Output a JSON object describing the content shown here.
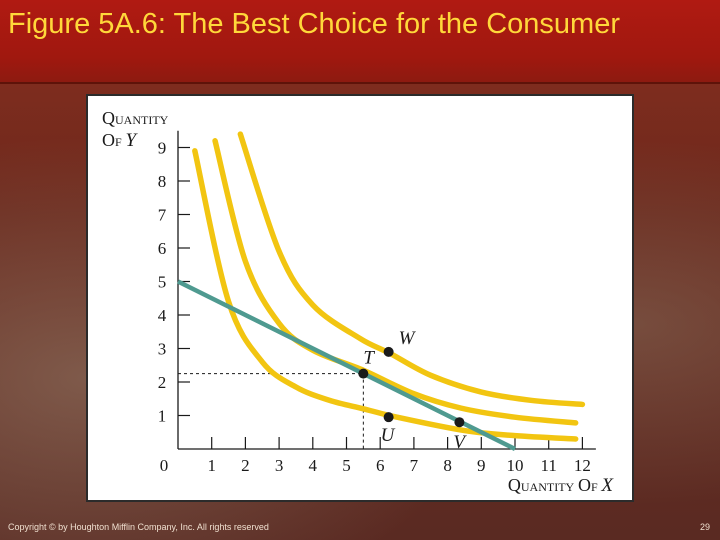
{
  "slide": {
    "title": "Figure 5A.6: The Best Choice for the Consumer",
    "footer": "Copyright © by Houghton Mifflin Company, Inc. All rights reserved",
    "page_number": "29"
  },
  "colors": {
    "title_bar": "#a8190f",
    "title_text": "#ffd83a",
    "indifference_curve": "#f2c511",
    "budget_line": "#4f9a90"
  },
  "chart_data": {
    "type": "line",
    "xlabel": "QUANTITY OF X",
    "ylabel_line1": "QUANTITY",
    "ylabel_line2": "OF Y",
    "xlim": [
      0,
      12.4
    ],
    "ylim": [
      0,
      9.5
    ],
    "x_ticks": [
      "1",
      "2",
      "3",
      "4",
      "5",
      "6",
      "7",
      "8",
      "9",
      "10",
      "11",
      "12"
    ],
    "y_ticks": [
      "1",
      "2",
      "3",
      "4",
      "5",
      "6",
      "7",
      "8",
      "9"
    ],
    "origin_label": "0",
    "grid": false,
    "budget_line": {
      "points": [
        [
          0,
          5
        ],
        [
          10,
          0
        ]
      ]
    },
    "indifference_curves": [
      {
        "points": [
          [
            0.5,
            8.9
          ],
          [
            1.5,
            4.4
          ],
          [
            2.5,
            2.6
          ],
          [
            3.5,
            1.85
          ],
          [
            4.5,
            1.45
          ],
          [
            5.5,
            1.2
          ],
          [
            6.5,
            0.95
          ],
          [
            8.5,
            0.55
          ],
          [
            10,
            0.4
          ],
          [
            11.8,
            0.3
          ]
        ]
      },
      {
        "points": [
          [
            1.1,
            9.2
          ],
          [
            2,
            5.6
          ],
          [
            3,
            3.75
          ],
          [
            4,
            2.95
          ],
          [
            5.5,
            2.35
          ],
          [
            7,
            1.65
          ],
          [
            8.4,
            1.22
          ],
          [
            10,
            0.95
          ],
          [
            11.8,
            0.78
          ]
        ]
      },
      {
        "points": [
          [
            1.85,
            9.4
          ],
          [
            3,
            5.9
          ],
          [
            4,
            4.3
          ],
          [
            5.4,
            3.3
          ],
          [
            6.3,
            2.85
          ],
          [
            7.5,
            2.2
          ],
          [
            9,
            1.7
          ],
          [
            10.5,
            1.45
          ],
          [
            12,
            1.33
          ]
        ]
      }
    ],
    "points": [
      {
        "label": "T",
        "x": 5.5,
        "y": 2.25
      },
      {
        "label": "W",
        "x": 6.25,
        "y": 2.9
      },
      {
        "label": "U",
        "x": 6.25,
        "y": 0.95
      },
      {
        "label": "V",
        "x": 8.35,
        "y": 0.8
      }
    ],
    "reference_lines": {
      "x": 5.5,
      "y": 2.25
    }
  }
}
